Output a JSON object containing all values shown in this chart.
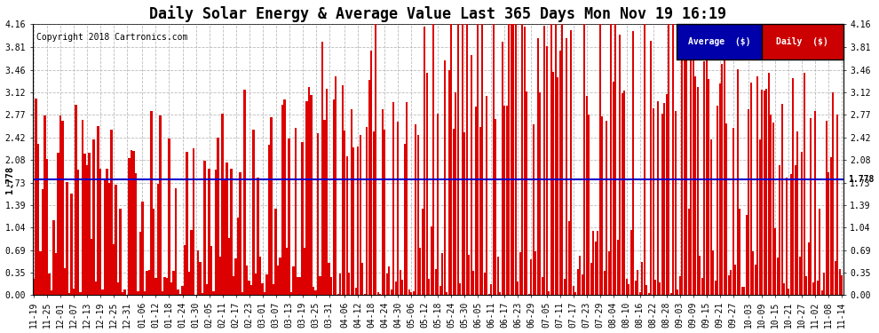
{
  "title": "Daily Solar Energy & Average Value Last 365 Days Mon Nov 19 16:19",
  "copyright": "Copyright 2018 Cartronics.com",
  "average_value": 1.778,
  "average_label": "Average  ($)",
  "daily_label": "Daily  ($)",
  "ylim": [
    0.0,
    4.16
  ],
  "yticks": [
    0.0,
    0.35,
    0.69,
    1.04,
    1.39,
    1.73,
    2.08,
    2.42,
    2.77,
    3.12,
    3.46,
    3.81,
    4.16
  ],
  "bar_color": "#dd0000",
  "avg_line_color": "#0000cc",
  "avg_label_color": "#000000",
  "background_color": "#ffffff",
  "grid_color": "#aaaaaa",
  "legend_avg_bg": "#0000aa",
  "legend_daily_bg": "#cc0000",
  "legend_text_color": "#ffffff",
  "x_labels": [
    "11-19",
    "11-25",
    "12-01",
    "12-07",
    "12-13",
    "12-19",
    "12-25",
    "12-31",
    "01-06",
    "01-12",
    "01-18",
    "01-24",
    "01-30",
    "02-05",
    "02-11",
    "02-17",
    "02-23",
    "03-01",
    "03-07",
    "03-13",
    "03-19",
    "03-25",
    "03-31",
    "04-06",
    "04-12",
    "04-18",
    "04-24",
    "04-30",
    "05-06",
    "05-12",
    "05-18",
    "05-24",
    "05-30",
    "06-05",
    "06-11",
    "06-17",
    "06-23",
    "06-29",
    "07-05",
    "07-11",
    "07-17",
    "07-23",
    "07-29",
    "08-04",
    "08-10",
    "08-16",
    "08-22",
    "08-28",
    "09-03",
    "09-09",
    "09-15",
    "09-21",
    "09-27",
    "10-03",
    "10-09",
    "10-15",
    "10-21",
    "10-27",
    "11-02",
    "11-08",
    "11-14"
  ],
  "title_fontsize": 12,
  "tick_fontsize": 7,
  "copyright_fontsize": 7,
  "figsize": [
    9.9,
    3.75
  ],
  "dpi": 100
}
